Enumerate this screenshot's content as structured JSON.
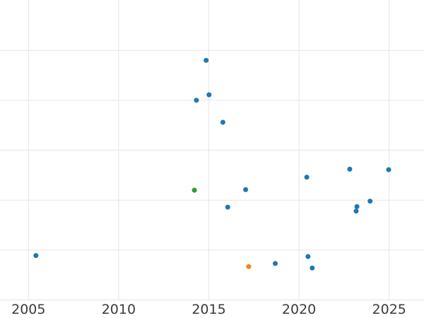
{
  "figure": {
    "background": "#ffffff",
    "grid_color": "#e5e5e5",
    "grid_line_width": 1,
    "tick_label_color": "#3b3b3b",
    "tick_label_font_size": 19
  },
  "chart_data": {
    "type": "scatter",
    "title": "",
    "xlabel": "",
    "ylabel": "",
    "x_ticks": [
      2005,
      2010,
      2015,
      2020,
      2025
    ],
    "x_tick_labels": [
      "2005",
      "2010",
      "2015",
      "2020",
      "2025"
    ],
    "xlim": [
      2003.42,
      2026.93
    ],
    "ylim": [
      0,
      6
    ],
    "y_gridline_values": [
      0,
      1,
      2,
      3,
      4,
      5
    ],
    "y_tick_labels": [],
    "grid": true,
    "legend_position": "none",
    "y_axis_note": "no y tick labels visible; y values estimated in gridline units (bottom gridline = 0, one unit per gridline)",
    "marker_radius": 3.5,
    "series": [
      {
        "name": "blue",
        "color": "#1f77b4",
        "points": [
          [
            2005.41,
            0.89
          ],
          [
            2014.31,
            4.0
          ],
          [
            2014.85,
            4.8
          ],
          [
            2015.01,
            4.11
          ],
          [
            2015.78,
            3.56
          ],
          [
            2016.05,
            1.86
          ],
          [
            2017.04,
            2.21
          ],
          [
            2018.68,
            0.73
          ],
          [
            2020.43,
            2.46
          ],
          [
            2020.5,
            0.87
          ],
          [
            2020.73,
            0.64
          ],
          [
            2022.81,
            2.62
          ],
          [
            2023.17,
            1.78
          ],
          [
            2023.21,
            1.87
          ],
          [
            2023.94,
            1.98
          ],
          [
            2024.97,
            2.61
          ]
        ]
      },
      {
        "name": "orange",
        "color": "#ff7f0e",
        "points": [
          [
            2017.21,
            0.67
          ]
        ]
      },
      {
        "name": "green",
        "color": "#2ca02c",
        "points": [
          [
            2014.2,
            2.2
          ]
        ]
      }
    ]
  }
}
